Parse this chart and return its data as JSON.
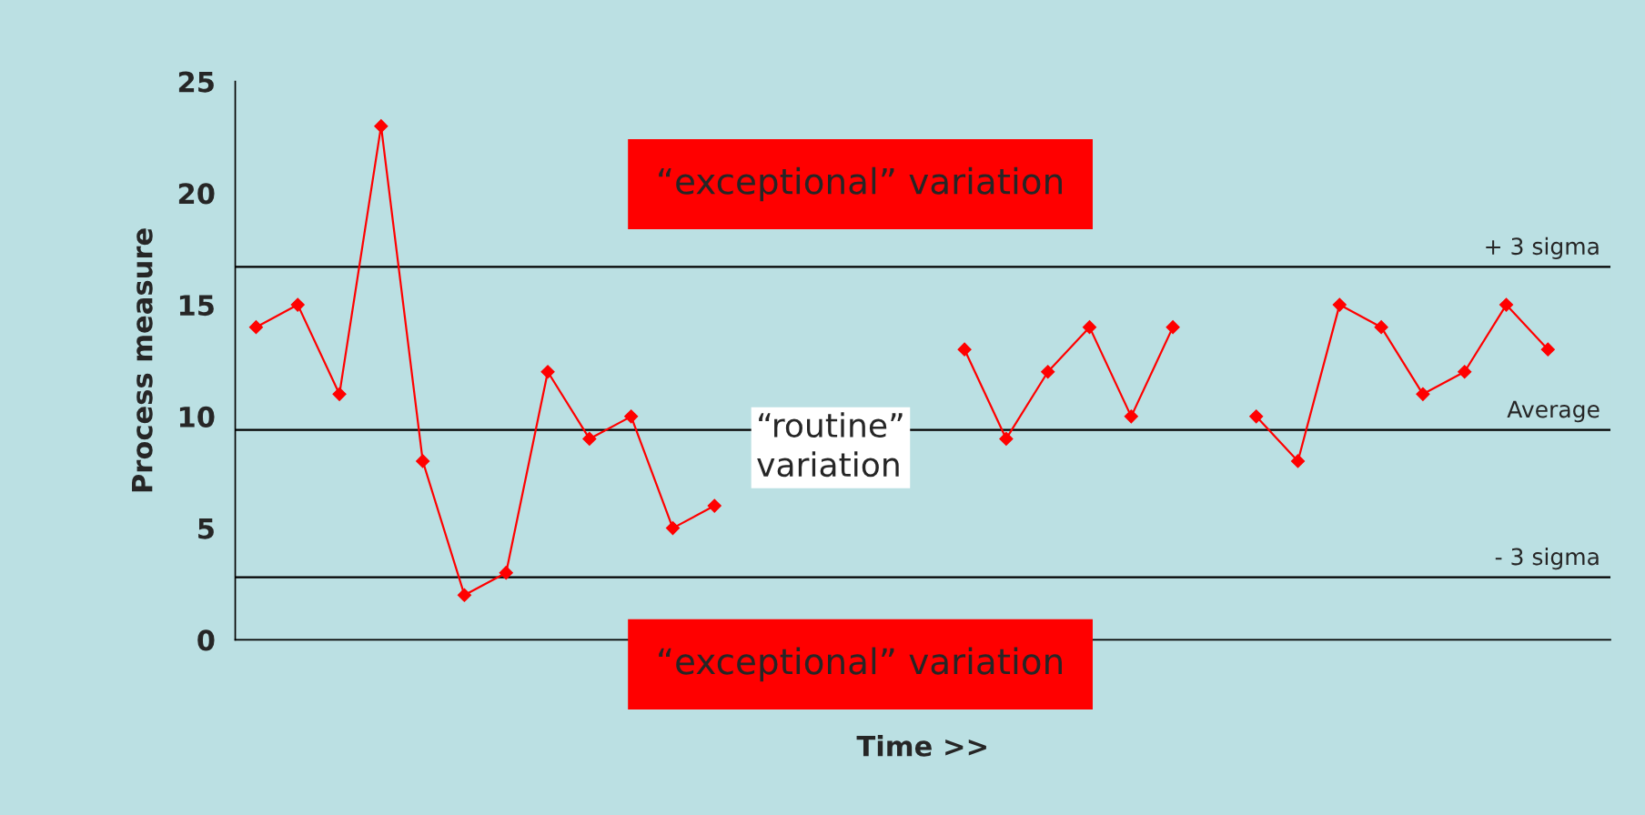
{
  "chart_data": {
    "type": "line",
    "xlabel": "Time >>",
    "ylabel": "Process measure",
    "categories": [
      null,
      null,
      null,
      null,
      null,
      null,
      null,
      null,
      null,
      null,
      null,
      null,
      null,
      null,
      null,
      null,
      null,
      null,
      null,
      null,
      null,
      null,
      null,
      null,
      null,
      null,
      null,
      null,
      null,
      null,
      null,
      null,
      null
    ],
    "series": [
      {
        "color": "#ff0000",
        "values": [
          14,
          15,
          11,
          23,
          8,
          2,
          3,
          12,
          9,
          10,
          5,
          6,
          null,
          null,
          null,
          null,
          null,
          13,
          9,
          12,
          14,
          10,
          14,
          null,
          10,
          8,
          15,
          14,
          11,
          12,
          15,
          13,
          null
        ]
      }
    ],
    "marker": "diamond",
    "line_style": "solid",
    "ylim": [
      0,
      25
    ],
    "yticks": [
      0,
      5,
      10,
      15,
      20,
      25
    ],
    "tick_labels": "y",
    "grid": false,
    "legend": false,
    "ref_lines": [
      {
        "axis": "y",
        "value": 16.7,
        "label": "+ 3 sigma",
        "color": "#000000"
      },
      {
        "axis": "y",
        "value": 9.4,
        "label": "Average",
        "color": "#000000"
      },
      {
        "axis": "y",
        "value": 2.8,
        "label": "- 3 sigma",
        "color": "#000000"
      }
    ],
    "annotations": [
      "“exceptional” variation",
      "“routine” variation",
      "“exceptional” variation"
    ]
  }
}
